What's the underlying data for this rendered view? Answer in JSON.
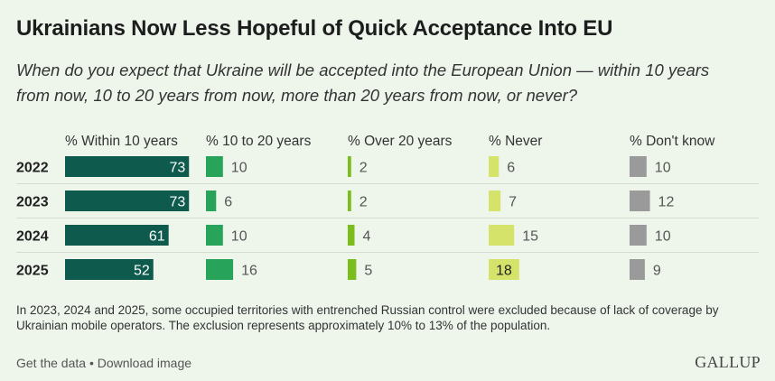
{
  "title": "Ukrainians Now Less Hopeful of Quick Acceptance Into EU",
  "subtitle": "When do you expect that Ukraine will be accepted into the European Union — within 10 years from now, 10 to 20 years from now, more than 20 years from now, or never?",
  "note": "In 2023, 2024 and 2025, some occupied territories with entrenched Russian control were excluded because of lack of coverage by Ukrainian mobile operators. The exclusion represents approximately 10% to 13% of the population.",
  "footer": {
    "get_data": "Get the data",
    "separator": "•",
    "download": "Download image"
  },
  "logo": "GALLUP",
  "colors": {
    "within10": "#0e5a4c",
    "ten20": "#27a35a",
    "over20": "#7cbd1e",
    "never": "#d6e36a",
    "dontknow": "#9a9a9a"
  },
  "chart_data": {
    "type": "bar",
    "categories": [
      "2022",
      "2023",
      "2024",
      "2025"
    ],
    "series": [
      {
        "name": "% Within 10 years",
        "values": [
          73,
          73,
          61,
          52
        ]
      },
      {
        "name": "% 10 to 20 years",
        "values": [
          10,
          6,
          10,
          16
        ]
      },
      {
        "name": "% Over 20 years",
        "values": [
          2,
          2,
          4,
          5
        ]
      },
      {
        "name": "% Never",
        "values": [
          6,
          7,
          15,
          18
        ]
      },
      {
        "name": "% Don't know",
        "values": [
          10,
          12,
          10,
          9
        ]
      }
    ],
    "highlighted": {
      "series": "% Never",
      "category": "2025"
    },
    "xlim": [
      0,
      100
    ]
  }
}
